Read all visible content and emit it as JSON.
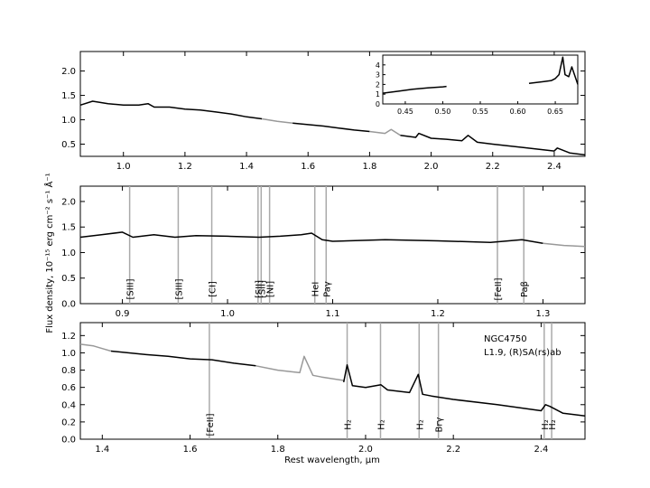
{
  "figure": {
    "ylabel": "Flux density, 10⁻¹⁵ erg cm⁻² s⁻¹ Å⁻¹",
    "xlabel": "Rest wavelength, μm",
    "object_name": "NGC4750",
    "object_class": "L1.9,  (R)SA(rs)ab",
    "colors": {
      "spectrum": "#000000",
      "masked": "#999999",
      "line_marker": "#aaaaaa"
    }
  },
  "chart_data": [
    {
      "type": "line",
      "panel": "top",
      "xlim": [
        0.86,
        2.5
      ],
      "ylim": [
        0.25,
        2.4
      ],
      "xticks": [
        "1.0",
        "1.2",
        "1.4",
        "1.6",
        "1.8",
        "2.0",
        "2.2",
        "2.4"
      ],
      "yticks": [
        "0.5",
        "1.0",
        "1.5",
        "2.0"
      ],
      "series": [
        {
          "style": "black",
          "x": [
            0.86,
            0.9,
            0.95,
            1.0,
            1.05,
            1.08,
            1.1,
            1.15,
            1.2,
            1.25,
            1.3,
            1.35,
            1.4,
            1.45
          ],
          "y": [
            1.3,
            1.38,
            1.33,
            1.3,
            1.3,
            1.33,
            1.26,
            1.26,
            1.22,
            1.2,
            1.16,
            1.12,
            1.06,
            1.02
          ]
        },
        {
          "style": "grey",
          "x": [
            1.45,
            1.5,
            1.55
          ],
          "y": [
            1.02,
            0.97,
            0.93
          ]
        },
        {
          "style": "black",
          "x": [
            1.55,
            1.6,
            1.65,
            1.7,
            1.75,
            1.8
          ],
          "y": [
            0.93,
            0.9,
            0.87,
            0.83,
            0.79,
            0.76
          ]
        },
        {
          "style": "grey",
          "x": [
            1.8,
            1.85,
            1.87,
            1.9
          ],
          "y": [
            0.76,
            0.72,
            0.8,
            0.68
          ]
        },
        {
          "style": "black",
          "x": [
            1.9,
            1.95,
            1.96,
            2.0,
            2.05,
            2.1,
            2.12,
            2.15,
            2.2,
            2.3,
            2.4,
            2.41,
            2.45,
            2.5
          ],
          "y": [
            0.68,
            0.64,
            0.72,
            0.62,
            0.6,
            0.57,
            0.68,
            0.54,
            0.5,
            0.43,
            0.36,
            0.42,
            0.32,
            0.28
          ]
        }
      ],
      "inset": {
        "xlim": [
          0.42,
          0.68
        ],
        "ylim": [
          0,
          5
        ],
        "xticks": [
          "0.45",
          "0.50",
          "0.55",
          "0.60",
          "0.65"
        ],
        "yticks": [
          "0",
          "1",
          "2",
          "3",
          "4"
        ],
        "series": [
          {
            "x": [
              0.42,
              0.44,
              0.46,
              0.48,
              0.5,
              0.505
            ],
            "y": [
              1.1,
              1.3,
              1.5,
              1.65,
              1.75,
              1.8
            ]
          },
          {
            "x": [
              0.615,
              0.625,
              0.635,
              0.645,
              0.65,
              0.655,
              0.66,
              0.663,
              0.668,
              0.672,
              0.68
            ],
            "y": [
              2.1,
              2.2,
              2.3,
              2.4,
              2.6,
              3.0,
              4.8,
              3.0,
              2.8,
              3.8,
              2.0
            ]
          }
        ]
      }
    },
    {
      "type": "line",
      "panel": "middle",
      "xlim": [
        0.86,
        1.34
      ],
      "ylim": [
        0,
        2.3
      ],
      "xticks": [
        "0.9",
        "1.0",
        "1.1",
        "1.2",
        "1.3"
      ],
      "yticks": [
        "0.0",
        "0.5",
        "1.0",
        "1.5",
        "2.0"
      ],
      "series": [
        {
          "style": "black",
          "x": [
            0.86,
            0.88,
            0.9,
            0.91,
            0.93,
            0.95,
            0.97,
            1.0,
            1.03,
            1.05,
            1.07,
            1.08,
            1.09,
            1.1,
            1.15,
            1.2,
            1.25,
            1.28,
            1.3
          ],
          "y": [
            1.3,
            1.35,
            1.4,
            1.3,
            1.35,
            1.3,
            1.33,
            1.32,
            1.3,
            1.32,
            1.35,
            1.38,
            1.25,
            1.22,
            1.25,
            1.23,
            1.2,
            1.25,
            1.18
          ]
        },
        {
          "style": "grey",
          "x": [
            1.3,
            1.32,
            1.34
          ],
          "y": [
            1.18,
            1.14,
            1.12
          ]
        }
      ],
      "lines": [
        {
          "x": 0.9069,
          "label": "[SIII]"
        },
        {
          "x": 0.9531,
          "label": "[SIII]"
        },
        {
          "x": 0.985,
          "label": "[CI]"
        },
        {
          "x": 1.029,
          "label": "[SII]"
        },
        {
          "x": 1.032,
          "label": "[SII]"
        },
        {
          "x": 1.04,
          "label": "[NI]"
        },
        {
          "x": 1.083,
          "label": "HeI"
        },
        {
          "x": 1.0938,
          "label": "Paγ"
        },
        {
          "x": 1.2567,
          "label": "[FeII]"
        },
        {
          "x": 1.2818,
          "label": "Paβ"
        }
      ]
    },
    {
      "type": "line",
      "panel": "bottom",
      "xlim": [
        1.35,
        2.5
      ],
      "ylim": [
        0,
        1.35
      ],
      "xticks": [
        "1.4",
        "1.6",
        "1.8",
        "2.0",
        "2.2",
        "2.4"
      ],
      "yticks": [
        "0.0",
        "0.2",
        "0.4",
        "0.6",
        "0.8",
        "1.0",
        "1.2"
      ],
      "series": [
        {
          "style": "grey",
          "x": [
            1.35,
            1.38,
            1.4,
            1.42
          ],
          "y": [
            1.1,
            1.08,
            1.05,
            1.02
          ]
        },
        {
          "style": "black",
          "x": [
            1.42,
            1.5,
            1.55,
            1.6,
            1.65,
            1.7,
            1.75
          ],
          "y": [
            1.02,
            0.98,
            0.96,
            0.93,
            0.92,
            0.88,
            0.85
          ]
        },
        {
          "style": "grey",
          "x": [
            1.75,
            1.8,
            1.85,
            1.86,
            1.88,
            1.9,
            1.95
          ],
          "y": [
            0.85,
            0.8,
            0.77,
            0.96,
            0.74,
            0.72,
            0.68
          ]
        },
        {
          "style": "black",
          "x": [
            1.95,
            1.958,
            1.97,
            2.0,
            2.035,
            2.05,
            2.1,
            2.12,
            2.13,
            2.15,
            2.2,
            2.3,
            2.4,
            2.41,
            2.42,
            2.45,
            2.5
          ],
          "y": [
            0.66,
            0.86,
            0.62,
            0.6,
            0.63,
            0.57,
            0.54,
            0.75,
            0.52,
            0.5,
            0.46,
            0.4,
            0.33,
            0.4,
            0.38,
            0.3,
            0.27
          ]
        }
      ],
      "lines": [
        {
          "x": 1.644,
          "label": "[FeII]"
        },
        {
          "x": 1.958,
          "label": "H₂"
        },
        {
          "x": 2.034,
          "label": "H₂"
        },
        {
          "x": 2.122,
          "label": "H₂"
        },
        {
          "x": 2.166,
          "label": "Brγ"
        },
        {
          "x": 2.407,
          "label": "H₂"
        },
        {
          "x": 2.424,
          "label": "H₂"
        }
      ]
    }
  ]
}
